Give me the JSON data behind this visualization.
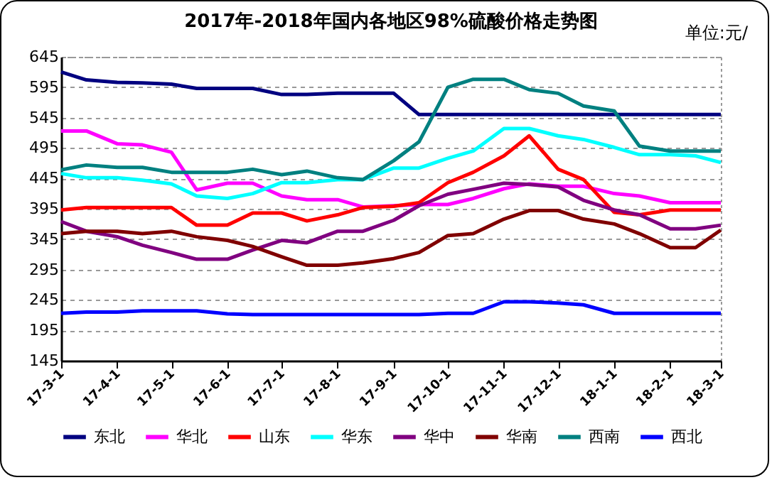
{
  "chart_data": {
    "type": "line",
    "title": "2017年-2018年国内各地区98%硫酸价格走势图",
    "annotations": [
      "单位:元/"
    ],
    "x": [
      "2017-03-01",
      "2017-03-15",
      "2017-04-01",
      "2017-04-15",
      "2017-05-01",
      "2017-05-15",
      "2017-06-01",
      "2017-06-15",
      "2017-07-01",
      "2017-07-15",
      "2017-08-01",
      "2017-08-15",
      "2017-09-01",
      "2017-09-15",
      "2017-10-01",
      "2017-10-15",
      "2017-11-01",
      "2017-11-15",
      "2017-12-01",
      "2017-12-15",
      "2018-01-01",
      "2018-01-15",
      "2018-02-01",
      "2018-02-15",
      "2018-03-01"
    ],
    "series": [
      {
        "name": "东北",
        "color": "#000080",
        "values": [
          620,
          607,
          603,
          602,
          600,
          593,
          593,
          593,
          583,
          583,
          585,
          585,
          585,
          550,
          550,
          550,
          550,
          550,
          550,
          550,
          550,
          550,
          550,
          550,
          550
        ]
      },
      {
        "name": "华北",
        "color": "#ff00ff",
        "values": [
          523,
          523,
          502,
          500,
          488,
          426,
          437,
          437,
          416,
          410,
          410,
          398,
          400,
          402,
          402,
          412,
          428,
          436,
          432,
          432,
          420,
          416,
          405,
          405,
          405
        ]
      },
      {
        "name": "山东",
        "color": "#ff0000",
        "values": [
          393,
          397,
          397,
          397,
          397,
          368,
          368,
          388,
          388,
          375,
          385,
          397,
          399,
          405,
          438,
          455,
          482,
          515,
          460,
          443,
          389,
          385,
          393,
          393,
          393
        ]
      },
      {
        "name": "华东",
        "color": "#00ffff",
        "values": [
          453,
          446,
          446,
          442,
          436,
          416,
          412,
          420,
          438,
          438,
          443,
          443,
          462,
          462,
          478,
          490,
          527,
          527,
          515,
          509,
          496,
          484,
          484,
          482,
          471
        ]
      },
      {
        "name": "华中",
        "color": "#800080",
        "values": [
          374,
          358,
          349,
          335,
          323,
          312,
          312,
          327,
          343,
          339,
          358,
          358,
          376,
          400,
          419,
          427,
          437,
          435,
          431,
          409,
          393,
          385,
          362,
          362,
          368
        ]
      },
      {
        "name": "华南",
        "color": "#800000",
        "values": [
          354,
          358,
          358,
          354,
          358,
          349,
          343,
          333,
          316,
          302,
          302,
          306,
          313,
          323,
          351,
          354,
          378,
          392,
          392,
          378,
          370,
          354,
          331,
          331,
          360
        ]
      },
      {
        "name": "西南",
        "color": "#008080",
        "values": [
          459,
          467,
          463,
          463,
          455,
          455,
          455,
          460,
          451,
          457,
          446,
          443,
          474,
          505,
          595,
          608,
          608,
          591,
          585,
          564,
          556,
          498,
          490,
          490,
          490
        ]
      },
      {
        "name": "西北",
        "color": "#0000ff",
        "values": [
          223,
          225,
          225,
          227,
          227,
          227,
          222,
          221,
          221,
          221,
          221,
          221,
          221,
          221,
          223,
          223,
          242,
          242,
          240,
          237,
          223,
          223,
          223,
          223,
          223
        ]
      }
    ],
    "xlim": [
      "2017-03-01",
      "2018-03-01"
    ],
    "xticks": [
      {
        "value": "2017-03-01",
        "label": "17-3-1"
      },
      {
        "value": "2017-04-01",
        "label": "17-4-1"
      },
      {
        "value": "2017-05-01",
        "label": "17-5-1"
      },
      {
        "value": "2017-06-01",
        "label": "17-6-1"
      },
      {
        "value": "2017-07-01",
        "label": "17-7-1"
      },
      {
        "value": "2017-08-01",
        "label": "17-8-1"
      },
      {
        "value": "2017-09-01",
        "label": "17-9-1"
      },
      {
        "value": "2017-10-01",
        "label": "17-10-1"
      },
      {
        "value": "2017-11-01",
        "label": "17-11-1"
      },
      {
        "value": "2017-12-01",
        "label": "17-12-1"
      },
      {
        "value": "2018-01-01",
        "label": "18-1-1"
      },
      {
        "value": "2018-02-01",
        "label": "18-2-1"
      },
      {
        "value": "2018-03-01",
        "label": "18-3-1"
      }
    ],
    "ylim": [
      145,
      645
    ],
    "yticks": [
      145,
      195,
      245,
      295,
      345,
      395,
      445,
      495,
      545,
      595,
      645
    ],
    "grid": "y",
    "legend": "bottom",
    "marker": "none",
    "line_style": "solid"
  }
}
